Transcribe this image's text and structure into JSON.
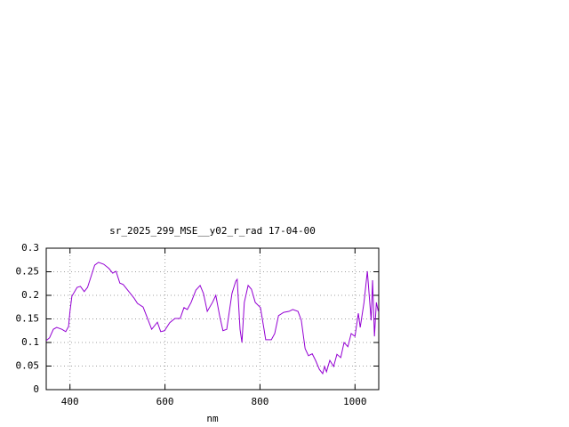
{
  "chart_data": {
    "type": "line",
    "title": "sr_2025_299_MSE__y02_r_rad 17-04-00",
    "x_label": "nm",
    "xlim": [
      350,
      1050
    ],
    "xticks": [
      400,
      600,
      800,
      1000
    ],
    "ylim": [
      0,
      0.3
    ],
    "yticks": [
      0,
      0.05,
      0.1,
      0.15,
      0.2,
      0.25,
      0.3
    ],
    "grid": true,
    "series": [
      {
        "color": "#9400d3",
        "x": [
          350,
          357,
          365,
          372,
          383,
          391,
          397,
          400,
          404,
          415,
          422,
          430,
          437,
          445,
          452,
          460,
          471,
          482,
          490,
          497,
          505,
          512,
          524,
          535,
          542,
          554,
          561,
          572,
          584,
          591,
          599,
          610,
          621,
          632,
          640,
          647,
          655,
          665,
          674,
          681,
          689,
          700,
          707,
          715,
          722,
          730,
          741,
          749,
          752,
          758,
          762,
          767,
          775,
          782,
          790,
          801,
          809,
          812,
          824,
          831,
          839,
          850,
          861,
          869,
          880,
          887,
          895,
          902,
          910,
          917,
          925,
          932,
          936,
          940,
          947,
          955,
          962,
          970,
          977,
          985,
          992,
          1000,
          1007,
          1011,
          1019,
          1026,
          1034,
          1037,
          1041,
          1045,
          1049
        ],
        "values": [
          0.104,
          0.11,
          0.128,
          0.132,
          0.128,
          0.123,
          0.134,
          0.166,
          0.198,
          0.217,
          0.219,
          0.208,
          0.217,
          0.242,
          0.264,
          0.27,
          0.266,
          0.257,
          0.247,
          0.251,
          0.226,
          0.223,
          0.208,
          0.194,
          0.183,
          0.175,
          0.157,
          0.128,
          0.143,
          0.123,
          0.125,
          0.142,
          0.151,
          0.151,
          0.174,
          0.17,
          0.185,
          0.211,
          0.221,
          0.204,
          0.166,
          0.185,
          0.2,
          0.157,
          0.125,
          0.128,
          0.204,
          0.23,
          0.234,
          0.128,
          0.1,
          0.185,
          0.221,
          0.213,
          0.185,
          0.174,
          0.125,
          0.106,
          0.106,
          0.119,
          0.157,
          0.164,
          0.166,
          0.17,
          0.166,
          0.147,
          0.087,
          0.072,
          0.076,
          0.062,
          0.043,
          0.034,
          0.049,
          0.038,
          0.062,
          0.049,
          0.075,
          0.068,
          0.1,
          0.091,
          0.119,
          0.113,
          0.162,
          0.132,
          0.185,
          0.251,
          0.147,
          0.232,
          0.113,
          0.185,
          0.166
        ]
      }
    ]
  }
}
